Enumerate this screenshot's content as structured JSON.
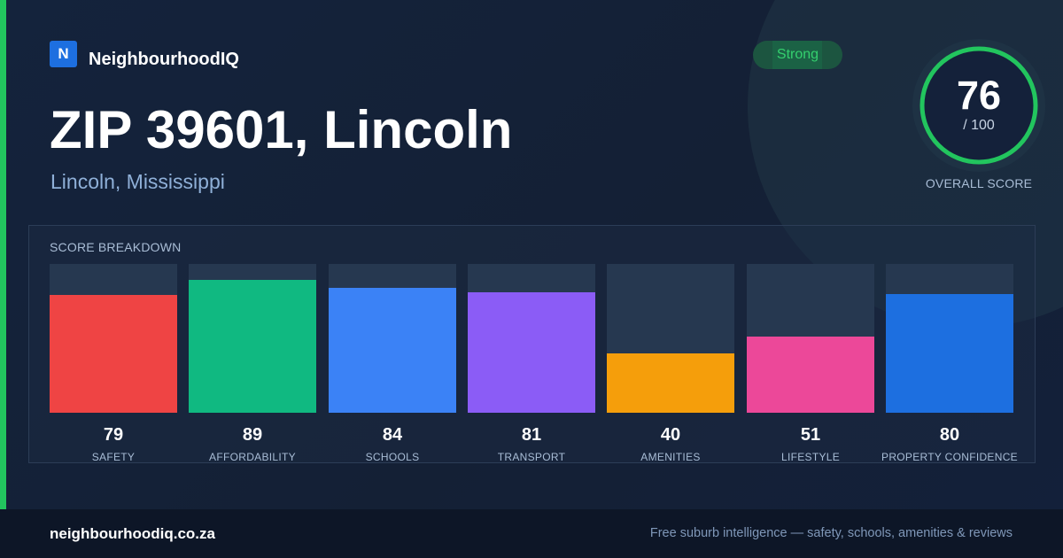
{
  "brand": {
    "logo_letter": "N",
    "name": "NeighbourhoodIQ"
  },
  "header": {
    "title": "ZIP 39601, Lincoln",
    "subtitle": "Lincoln, Mississippi"
  },
  "status_badge": "Strong",
  "overall_score": {
    "value": "76",
    "max_label": "/ 100",
    "caption": "OVERALL SCORE",
    "fraction": 0.76
  },
  "breakdown": {
    "heading": "SCORE BREAKDOWN",
    "categories": [
      {
        "label": "SAFETY",
        "value": 79,
        "color": "#ef4444"
      },
      {
        "label": "AFFORDABILITY",
        "value": 89,
        "color": "#10b981"
      },
      {
        "label": "SCHOOLS",
        "value": 84,
        "color": "#3b82f6"
      },
      {
        "label": "TRANSPORT",
        "value": 81,
        "color": "#8b5cf6"
      },
      {
        "label": "AMENITIES",
        "value": 40,
        "color": "#f59e0b"
      },
      {
        "label": "LIFESTYLE",
        "value": 51,
        "color": "#ec4899"
      },
      {
        "label": "PROPERTY CONFIDENCE",
        "value": 80,
        "color": "#1d6fe0"
      }
    ]
  },
  "footer": {
    "domain": "neighbourhoodiq.co.za",
    "tagline": "Free suburb intelligence — safety, schools, amenities & reviews"
  },
  "colors": {
    "accent": "#22c55e",
    "background": "#14213a",
    "brand_blue": "#1d6fe0"
  }
}
